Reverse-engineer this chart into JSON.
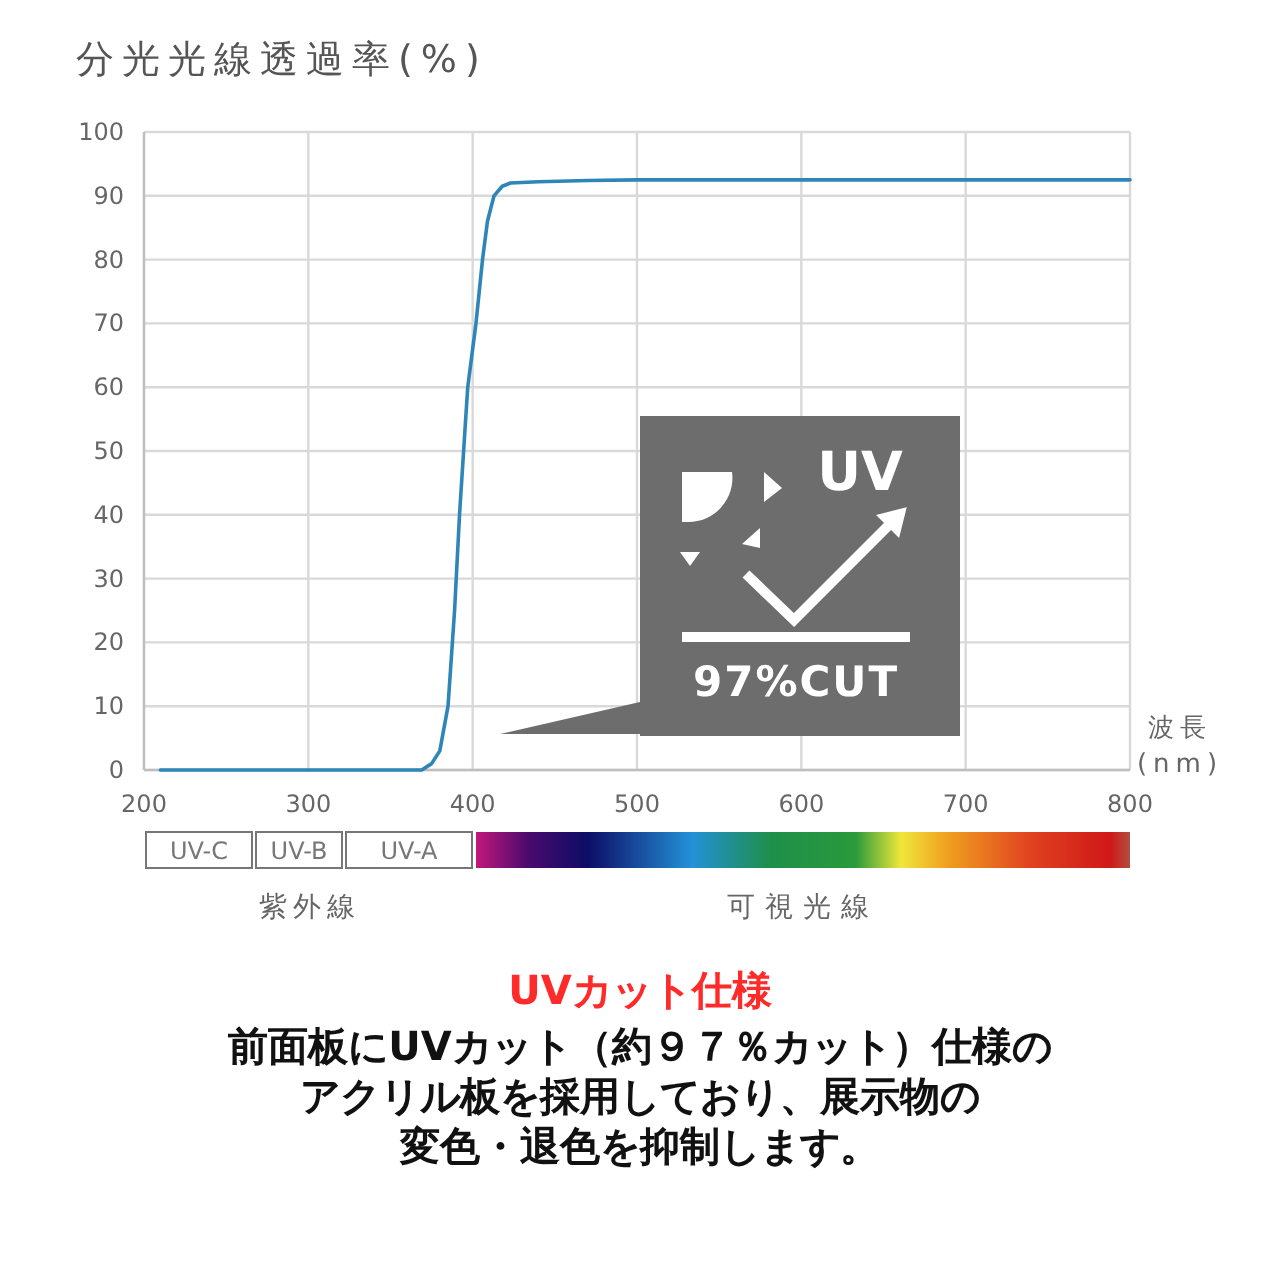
{
  "chart_data": {
    "type": "line",
    "title": "分光光線透過率(%)",
    "xlabel": "波長 (nm)",
    "x": [
      210,
      300,
      360,
      369,
      375,
      380,
      385,
      389,
      392,
      395,
      397,
      400,
      402,
      404,
      406,
      409,
      413,
      418,
      423,
      440,
      470,
      500,
      600,
      700,
      800
    ],
    "series": [
      {
        "color": "#2e86b8",
        "values": [
          0,
          0,
          0,
          0,
          1,
          3,
          10,
          25,
          40,
          52,
          60,
          66,
          70,
          75,
          80,
          86,
          90,
          91.5,
          92,
          92.2,
          92.4,
          92.5,
          92.5,
          92.5,
          92.5
        ]
      }
    ],
    "xlim": [
      200,
      800
    ],
    "xticks": [
      200,
      300,
      400,
      500,
      600,
      700,
      800
    ],
    "ylim": [
      0,
      100
    ],
    "yticks": [
      0,
      10,
      20,
      30,
      40,
      50,
      60,
      70,
      80,
      90,
      100
    ],
    "grid": true,
    "marker": "none",
    "line_style": "solid",
    "annotations": [
      "UV",
      "97%CUT",
      "紫外線",
      "可視光線",
      "UVカット仕様",
      "前面板にUVカット（約９７％カット）仕様の",
      "アクリル板を採用しており、展示物の",
      "変色・退色を抑制します。",
      "UV-C",
      "UV-B",
      "UV-A"
    ]
  }
}
